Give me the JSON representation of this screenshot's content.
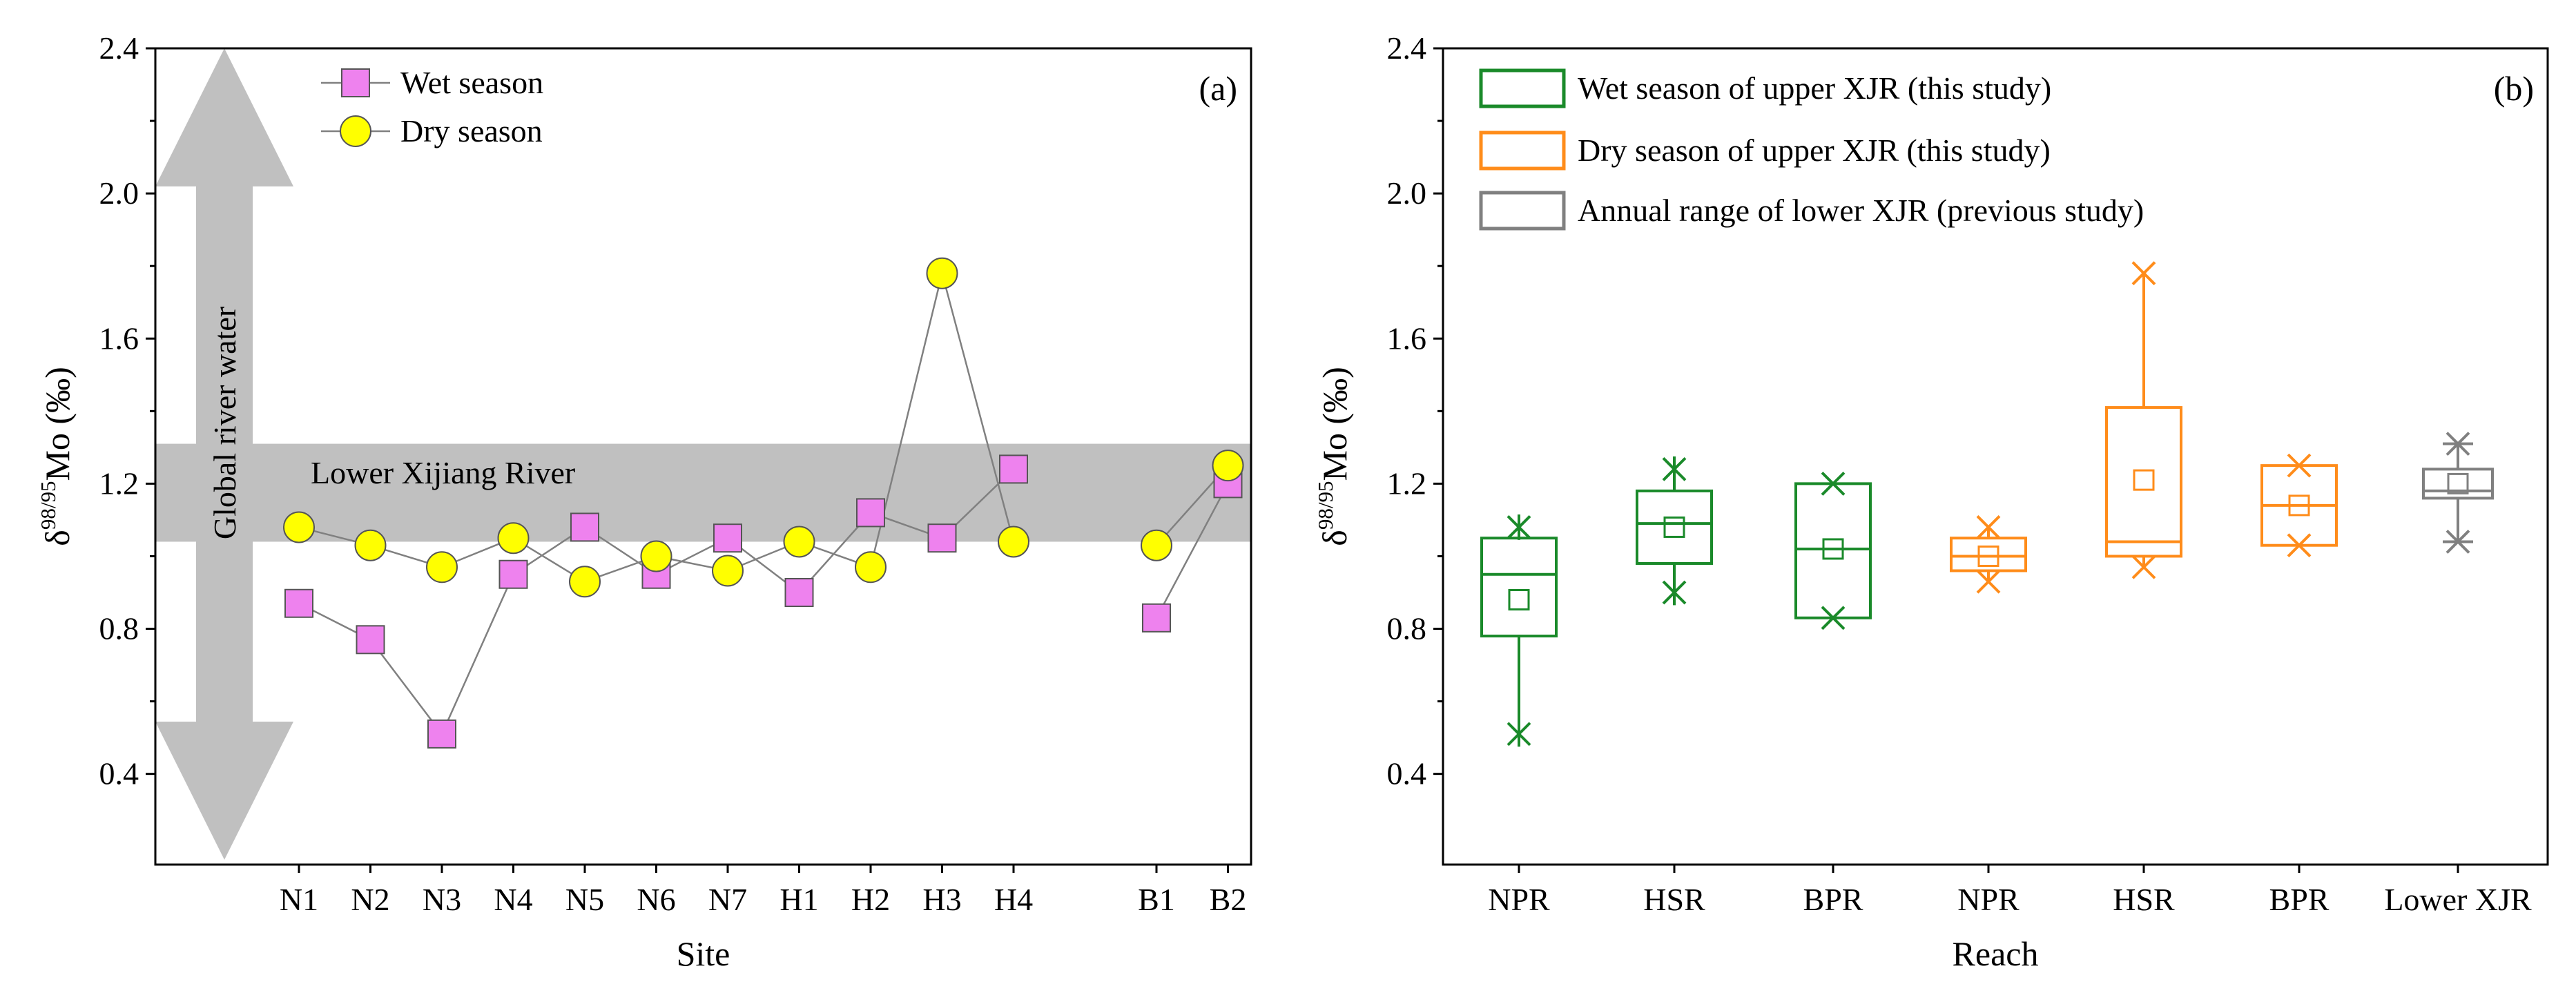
{
  "chart_data": [
    {
      "type": "line",
      "panel_label": "(a)",
      "xlabel": "Site",
      "ylabel_parts": {
        "delta": "δ",
        "sup": "98/95",
        "main": "Mo (‰)"
      },
      "ylim": [
        0.15,
        2.4
      ],
      "yticks": [
        "0.4",
        "0.8",
        "1.2",
        "1.6",
        "2.0",
        "2.4"
      ],
      "categories": [
        "N1",
        "N2",
        "N3",
        "N4",
        "N5",
        "N6",
        "N7",
        "H1",
        "H2",
        "H3",
        "H4",
        "B1",
        "B2"
      ],
      "series": [
        {
          "name": "Wet season",
          "marker": "square",
          "color": "#ee82ee",
          "values": [
            0.87,
            0.77,
            0.51,
            0.95,
            1.08,
            0.95,
            1.05,
            0.9,
            1.12,
            1.05,
            1.24,
            0.83,
            1.2
          ]
        },
        {
          "name": "Dry season",
          "marker": "circle",
          "color": "#ffff00",
          "values": [
            1.08,
            1.03,
            0.97,
            1.05,
            0.93,
            1.0,
            0.96,
            1.04,
            0.97,
            1.78,
            1.04,
            1.03,
            1.25
          ]
        }
      ],
      "band": {
        "label": "Lower Xijiang River",
        "range": [
          1.04,
          1.31
        ],
        "color": "#c0c0c0"
      },
      "arrow": {
        "label": "Global river water",
        "color": "#c0c0c0"
      }
    },
    {
      "type": "box",
      "panel_label": "(b)",
      "xlabel": "Reach",
      "ylabel_parts": {
        "delta": "δ",
        "sup": "98/95",
        "main": "Mo (‰)"
      },
      "ylim": [
        0.15,
        2.4
      ],
      "yticks": [
        "0.4",
        "0.8",
        "1.2",
        "1.6",
        "2.0",
        "2.4"
      ],
      "categories": [
        "NPR",
        "HSR",
        "BPR",
        "NPR",
        "HSR",
        "BPR",
        "Lower XJR"
      ],
      "legend": [
        {
          "label": "Wet season of upper XJR (this study)",
          "color": "#1a8a2a"
        },
        {
          "label": "Dry season of upper XJR (this study)",
          "color": "#ff8c1a"
        },
        {
          "label": "Annual range of lower XJR (previous study)",
          "color": "#808080"
        }
      ],
      "boxes": [
        {
          "category": "NPR",
          "group": "wet",
          "q1": 0.78,
          "median": 0.95,
          "q3": 1.05,
          "mean": 0.88,
          "whisker_low": 0.51,
          "whisker_high": 1.08,
          "min": 0.51,
          "max": 1.08
        },
        {
          "category": "HSR",
          "group": "wet",
          "q1": 0.98,
          "median": 1.09,
          "q3": 1.18,
          "mean": 1.08,
          "whisker_low": 0.9,
          "whisker_high": 1.24,
          "min": 0.9,
          "max": 1.24
        },
        {
          "category": "BPR",
          "group": "wet",
          "q1": 0.83,
          "median": 1.02,
          "q3": 1.2,
          "mean": 1.02,
          "whisker_low": 0.83,
          "whisker_high": 1.2,
          "min": 0.83,
          "max": 1.2
        },
        {
          "category": "NPR",
          "group": "dry",
          "q1": 0.96,
          "median": 1.0,
          "q3": 1.05,
          "mean": 1.0,
          "whisker_low": 0.93,
          "whisker_high": 1.08,
          "min": 0.93,
          "max": 1.08
        },
        {
          "category": "HSR",
          "group": "dry",
          "q1": 1.0,
          "median": 1.04,
          "q3": 1.41,
          "mean": 1.21,
          "whisker_low": 0.97,
          "whisker_high": 1.78,
          "min": 0.97,
          "max": 1.78
        },
        {
          "category": "BPR",
          "group": "dry",
          "q1": 1.03,
          "median": 1.14,
          "q3": 1.25,
          "mean": 1.14,
          "whisker_low": 1.03,
          "whisker_high": 1.25,
          "min": 1.03,
          "max": 1.25
        },
        {
          "category": "Lower XJR",
          "group": "lower",
          "q1": 1.16,
          "median": 1.18,
          "q3": 1.24,
          "mean": 1.2,
          "whisker_low": 1.04,
          "whisker_high": 1.31,
          "min": 1.04,
          "max": 1.31
        }
      ]
    }
  ]
}
